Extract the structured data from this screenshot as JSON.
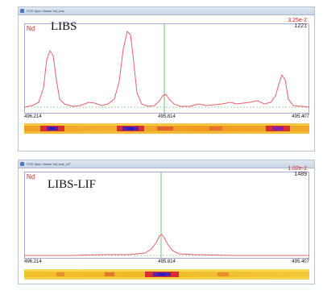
{
  "windows": [
    {
      "title": "FOS Spec Viewer Nd_test",
      "element": "Nd",
      "scale": "3.25e-2",
      "count": "1221",
      "label": "LIBS",
      "axis": {
        "left": "496.214",
        "mid": "495.814",
        "right": "495.407"
      }
    },
    {
      "title": "FOS Spec Viewer Nd_test_LIF",
      "element": "Nd",
      "scale": "1.02e-2",
      "count": "1489",
      "label": "LIBS-LIF",
      "axis": {
        "left": "496.214",
        "mid": "495.814",
        "right": "495.407"
      }
    }
  ],
  "colors": {
    "spectrum": "#e8606a",
    "cursor": "#6cc86c",
    "baseline": "#80c080",
    "frame": "#a9a9d8"
  }
}
